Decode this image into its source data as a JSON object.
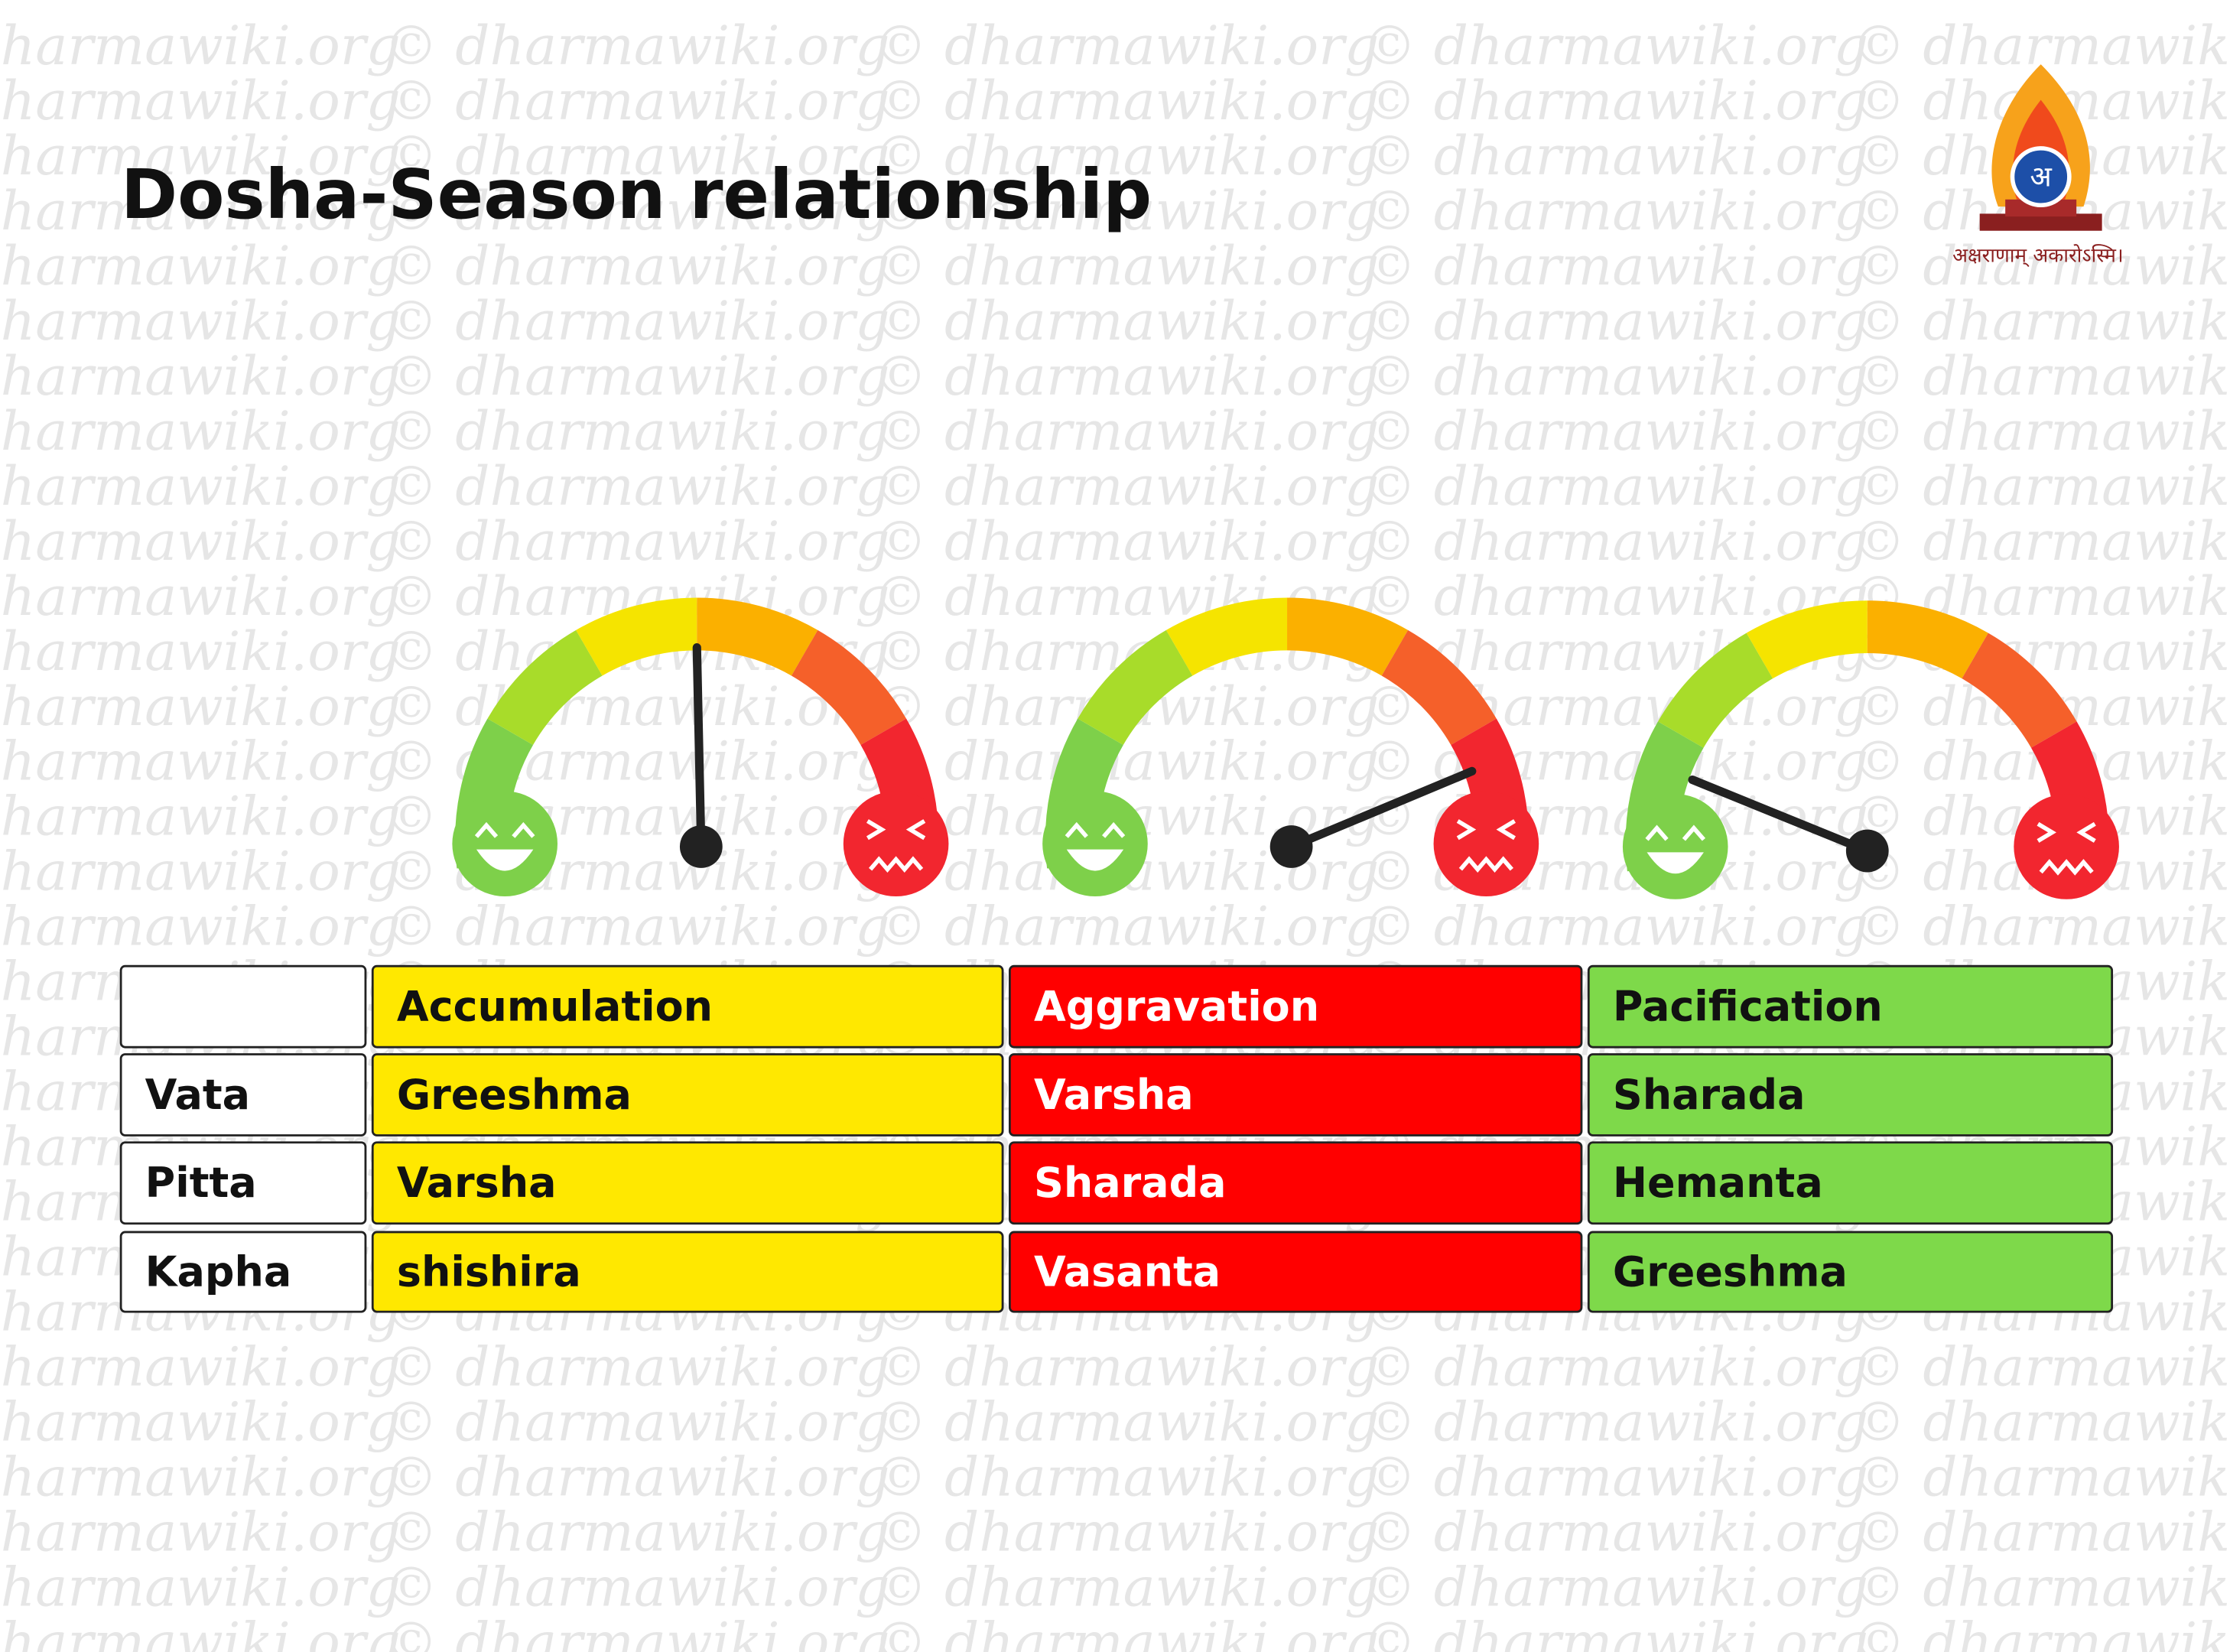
{
  "header": {
    "title": "Dosha-Season relationship"
  },
  "logo": {
    "letter": "अ",
    "caption": "अक्षराणाम् अकारोऽस्मि।"
  },
  "watermark": "© dharmawiki.org",
  "table": {
    "columns": [
      "Accumulation",
      "Aggravation",
      "Pacification"
    ],
    "rows": [
      [
        "Vata",
        "Greeshma",
        "Varsha",
        "Sharada"
      ],
      [
        "Pitta",
        "Varsha",
        "Sharada",
        "Hemanta"
      ],
      [
        "Kapha",
        "shishira",
        "Vasanta",
        "Greeshma"
      ]
    ]
  }
}
